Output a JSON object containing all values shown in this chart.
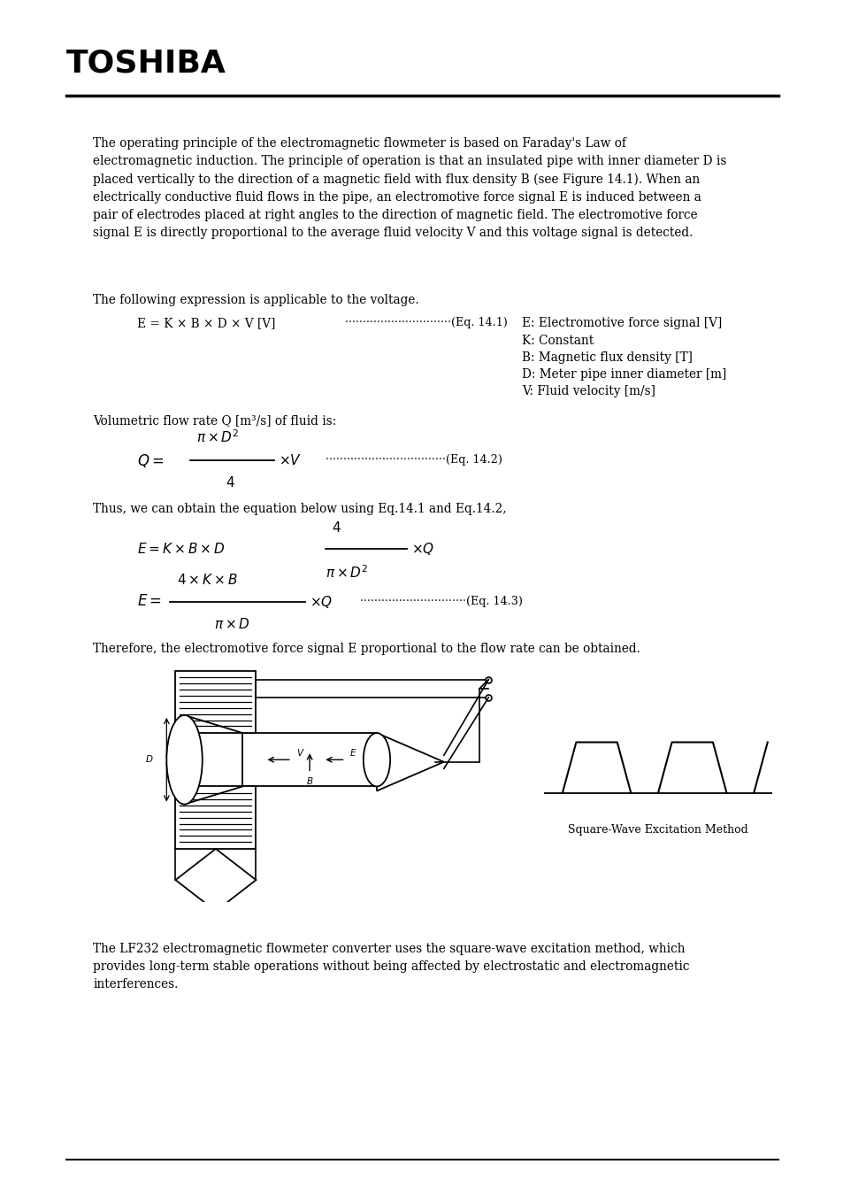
{
  "bg_color": "#ffffff",
  "text_color": "#000000",
  "title_text": "TOSHIBA",
  "para1": "The operating principle of the electromagnetic flowmeter is based on Faraday's Law of\nelectromagnetic induction. The principle of operation is that an insulated pipe with inner diameter D is\nplaced vertically to the direction of a magnetic field with flux density B (see Figure 14.1). When an\nelectrically conductive fluid flows in the pipe, an electromotive force signal E is induced between a\npair of electrodes placed at right angles to the direction of magnetic field. The electromotive force\nsignal E is directly proportional to the average fluid velocity V and this voltage signal is detected.",
  "para2": "The following expression is applicable to the voltage.",
  "eq1_left": "E = K × B × D × V [V]",
  "eq1_right1": "E: Electromotive force signal [V]",
  "eq1_right2": "K: Constant",
  "eq1_right3": "B: Magnetic flux density [T]",
  "eq1_right4": "D: Meter pipe inner diameter [m]",
  "eq1_right5": "V: Fluid velocity [m/s]",
  "para3": "Volumetric flow rate Q [m³/s] of fluid is:",
  "para4": "Thus, we can obtain the equation below using Eq.14.1 and Eq.14.2,",
  "para5": "Therefore, the electromotive force signal E proportional to the flow rate can be obtained.",
  "para6": "The LF232 electromagnetic flowmeter converter uses the square-wave excitation method, which\nprovides long-term stable operations without being affected by electrostatic and electromagnetic\ninterferences.",
  "square_wave_label": "Square-Wave Excitation Method"
}
